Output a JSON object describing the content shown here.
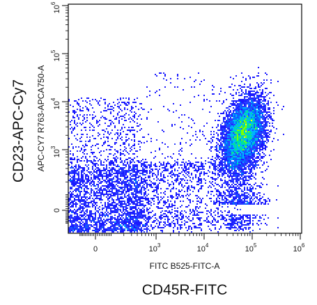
{
  "chart_data": {
    "type": "scatter",
    "title": "",
    "xlabel": "FITC B525-FITC-A",
    "ylabel": "APC-CY7 R763-APCA750-A",
    "outer_xlabel": "CD45R-FITC",
    "outer_ylabel": "CD23-APC-Cy7",
    "x_scale": "biexponential",
    "y_scale": "biexponential",
    "xlim": [
      -200,
      1000000
    ],
    "ylim": [
      -200,
      1000000
    ],
    "x_ticks": [
      {
        "value": 0,
        "base": "0",
        "exp": ""
      },
      {
        "value": 1000,
        "base": "10",
        "exp": "3"
      },
      {
        "value": 10000,
        "base": "10",
        "exp": "4"
      },
      {
        "value": 100000,
        "base": "10",
        "exp": "5"
      },
      {
        "value": 1000000,
        "base": "10",
        "exp": "6"
      }
    ],
    "y_ticks": [
      {
        "value": 0,
        "base": "0",
        "exp": ""
      },
      {
        "value": 1000,
        "base": "10",
        "exp": "3"
      },
      {
        "value": 10000,
        "base": "10",
        "exp": "4"
      },
      {
        "value": 100000,
        "base": "10",
        "exp": "5"
      },
      {
        "value": 1000000,
        "base": "10",
        "exp": "6"
      }
    ],
    "grid": false,
    "legend": "none",
    "density_colormap": [
      "#1a1aff",
      "#00b4ff",
      "#00e0a0",
      "#7fff00",
      "#ffff00"
    ],
    "populations": [
      {
        "x": 50,
        "y": -20,
        "spread_x": 260,
        "spread_y": 250,
        "peak_density": "high"
      },
      {
        "x": 60000,
        "y": 2000,
        "spread_x": 0.28,
        "spread_y": 0.32,
        "peak_density": "high"
      }
    ],
    "series": [
      {
        "points": [
          [
            30,
            -50
          ],
          [
            80,
            20
          ],
          [
            -40,
            100
          ],
          [
            120,
            -10
          ],
          [
            60,
            300
          ],
          [
            200,
            150
          ],
          [
            -80,
            -120
          ],
          [
            10,
            500
          ],
          [
            250,
            50
          ],
          [
            90,
            800
          ],
          [
            -20,
            1200
          ],
          [
            150,
            -90
          ],
          [
            400,
            200
          ],
          [
            600,
            100
          ],
          [
            900,
            50
          ],
          [
            40,
            60
          ],
          [
            70,
            -80
          ],
          [
            110,
            250
          ],
          [
            -60,
            30
          ],
          [
            180,
            400
          ],
          [
            20,
            900
          ],
          [
            300,
            -40
          ],
          [
            500,
            600
          ],
          [
            1500,
            200
          ],
          [
            2500,
            300
          ],
          [
            800,
            1500
          ],
          [
            350,
            2000
          ],
          [
            120,
            3000
          ],
          [
            60,
            1800
          ],
          [
            -30,
            2500
          ],
          [
            220,
            4000
          ],
          [
            90,
            6000
          ],
          [
            400,
            12000
          ],
          [
            3000,
            800
          ],
          [
            5000,
            1200
          ],
          [
            8000,
            2500
          ],
          [
            12000,
            1500
          ],
          [
            15000,
            3000
          ],
          [
            20000,
            4000
          ],
          [
            25000,
            6000
          ],
          [
            30000,
            2000
          ],
          [
            35000,
            8000
          ],
          [
            40000,
            1000
          ],
          [
            45000,
            5000
          ],
          [
            50000,
            3000
          ],
          [
            55000,
            7000
          ],
          [
            60000,
            2500
          ],
          [
            65000,
            4500
          ],
          [
            70000,
            6000
          ],
          [
            75000,
            3500
          ],
          [
            80000,
            9000
          ],
          [
            85000,
            2000
          ],
          [
            90000,
            5000
          ],
          [
            95000,
            12000
          ],
          [
            100000,
            4000
          ],
          [
            110000,
            7000
          ],
          [
            120000,
            3000
          ],
          [
            130000,
            6500
          ],
          [
            150000,
            5000
          ],
          [
            180000,
            8000
          ],
          [
            60000,
            500
          ],
          [
            45000,
            300
          ],
          [
            70000,
            800
          ],
          [
            35000,
            200
          ],
          [
            28000,
            1500
          ],
          [
            52000,
            15000
          ],
          [
            65000,
            20000
          ],
          [
            80000,
            600
          ],
          [
            40000,
            30000
          ],
          [
            25000,
            400
          ],
          [
            18000,
            700
          ],
          [
            22000,
            100
          ],
          [
            9000,
            50
          ],
          [
            6000,
            150
          ],
          [
            4000,
            30000
          ]
        ]
      }
    ]
  }
}
